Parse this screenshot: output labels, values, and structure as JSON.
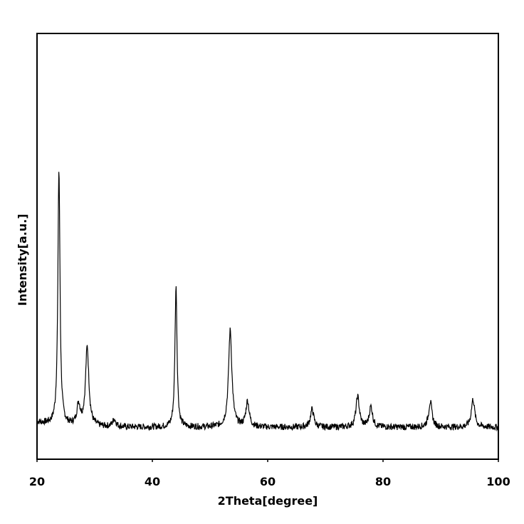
{
  "chart_data": {
    "type": "line",
    "xlabel": "2Theta[degree]",
    "ylabel": "Intensity[a.u.]",
    "xlim": [
      20,
      100
    ],
    "ylim": [
      0,
      1
    ],
    "xticks": [
      20,
      40,
      60,
      80,
      100
    ],
    "yticks": [],
    "grid": false,
    "legend": "none",
    "line_color": "#000000",
    "baseline": 0.05,
    "peaks": [
      {
        "x": 23.8,
        "y": 1.0
      },
      {
        "x": 27.2,
        "y": 0.08
      },
      {
        "x": 28.7,
        "y": 0.31
      },
      {
        "x": 33.4,
        "y": 0.03
      },
      {
        "x": 44.1,
        "y": 0.55
      },
      {
        "x": 53.5,
        "y": 0.38
      },
      {
        "x": 56.5,
        "y": 0.1
      },
      {
        "x": 67.7,
        "y": 0.07
      },
      {
        "x": 75.6,
        "y": 0.12
      },
      {
        "x": 77.9,
        "y": 0.08
      },
      {
        "x": 88.2,
        "y": 0.1
      },
      {
        "x": 95.6,
        "y": 0.11
      }
    ]
  }
}
